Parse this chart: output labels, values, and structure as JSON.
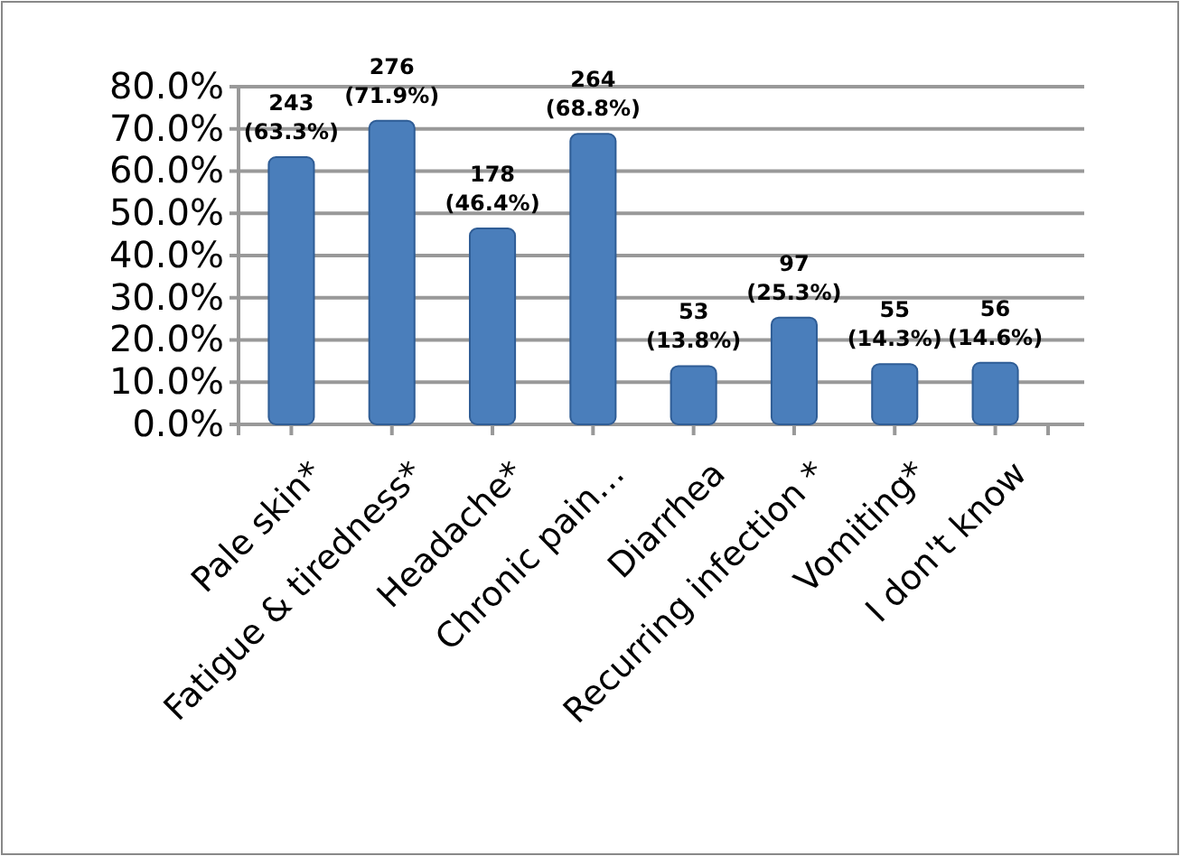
{
  "chart_data": {
    "type": "bar",
    "categories": [
      "Pale skin*",
      "Fatigue & tiredness*",
      "Headache*",
      "Chronic pain…",
      "Diarrhea",
      "Recurring infection *",
      "Vomiting*",
      "I don't know"
    ],
    "values": [
      63.3,
      71.9,
      46.4,
      68.8,
      13.8,
      25.3,
      14.3,
      14.6
    ],
    "value_labels": [
      "243 (63.3%)",
      "276 (71.9%)",
      "178 (46.4%)",
      "264 (68.8%)",
      "53 (13.8%)",
      "97 (25.3%)",
      "55 (14.3%)",
      "56 (14.6%)"
    ],
    "color": "#4a7ebb",
    "ylim": [
      0,
      80
    ],
    "yticks": [
      {
        "value": 0,
        "label": "0.0%"
      },
      {
        "value": 10,
        "label": "10.0%"
      },
      {
        "value": 20,
        "label": "20.0%"
      },
      {
        "value": 30,
        "label": "30.0%"
      },
      {
        "value": 40,
        "label": "40.0%"
      },
      {
        "value": 50,
        "label": "50.0%"
      },
      {
        "value": 60,
        "label": "60.0%"
      },
      {
        "value": 70,
        "label": "70.0%"
      },
      {
        "value": 80,
        "label": "80.0%"
      }
    ],
    "grid": "y"
  }
}
